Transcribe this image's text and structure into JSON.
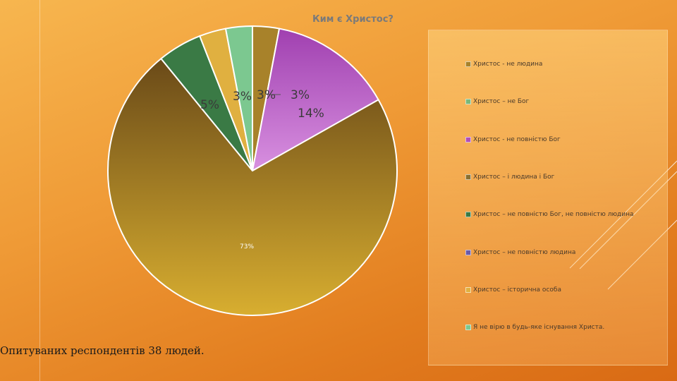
{
  "chart_data": {
    "type": "pie",
    "title": "Ким є Христос?",
    "categories": [
      "Христос  - не людина",
      "Христос – не Бог",
      "Христос  - не повністю Бог",
      "Христос – і людина і Бог",
      "Христос – не повністю Бог, не повністю людина",
      "Христос – не повністю людина",
      "Христос – історична особа",
      "Я не вірю в будь-яке існування Христа."
    ],
    "values": [
      3,
      0,
      14,
      73,
      5,
      0,
      3,
      3
    ],
    "data_labels": [
      "3%",
      "",
      "14%",
      "73%",
      "5%",
      "",
      "3%",
      "3%"
    ],
    "colors": [
      "#a8822a",
      "#7ab87a",
      "#b050b8",
      "#c9a030",
      "#3a7a45",
      "#6a5aa8",
      "#e0b040",
      "#7cc890"
    ],
    "legend_position": "right",
    "grid": false
  },
  "footnote": "Опитуваних респондентів 38 людей."
}
